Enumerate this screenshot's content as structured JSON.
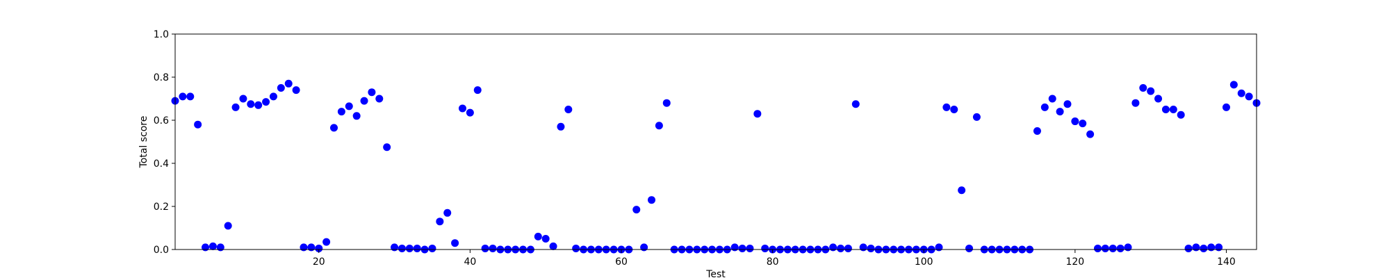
{
  "chart_data": {
    "type": "scatter",
    "title": "",
    "xlabel": "Test",
    "ylabel": "Total score",
    "xlim": [
      1,
      144
    ],
    "ylim": [
      0,
      1.0
    ],
    "xticks": [
      20,
      40,
      60,
      80,
      100,
      120,
      140
    ],
    "xtick_labels": [
      "20",
      "40",
      "60",
      "80",
      "100",
      "120",
      "140"
    ],
    "yticks": [
      0,
      0.2,
      0.4,
      0.6,
      0.8,
      1.0
    ],
    "ytick_labels": [
      "0.0",
      "0.2",
      "0.4",
      "0.6",
      "0.8",
      "1.0"
    ],
    "grid": false,
    "marker_color": "#0000ff",
    "series": [
      {
        "x": [
          1,
          2,
          3,
          4,
          5,
          6,
          7,
          8,
          9,
          10,
          11,
          12,
          13,
          14,
          15,
          16,
          17,
          18,
          19,
          20,
          21,
          22,
          23,
          24,
          25,
          26,
          27,
          28,
          29,
          30,
          31,
          32,
          33,
          34,
          35,
          36,
          37,
          38,
          39,
          40,
          41,
          42,
          43,
          44,
          45,
          46,
          47,
          48,
          49,
          50,
          51,
          52,
          53,
          54,
          55,
          56,
          57,
          58,
          59,
          60,
          61,
          62,
          63,
          64,
          65,
          66,
          67,
          68,
          69,
          70,
          71,
          72,
          73,
          74,
          75,
          76,
          77,
          78,
          79,
          80,
          81,
          82,
          83,
          84,
          85,
          86,
          87,
          88,
          89,
          90,
          91,
          92,
          93,
          94,
          95,
          96,
          97,
          98,
          99,
          100,
          101,
          102,
          103,
          104,
          105,
          106,
          107,
          108,
          109,
          110,
          111,
          112,
          113,
          114,
          115,
          116,
          117,
          118,
          119,
          120,
          121,
          122,
          123,
          124,
          125,
          126,
          127,
          128,
          129,
          130,
          131,
          132,
          133,
          134,
          135,
          136,
          137,
          138,
          139,
          140,
          141,
          142,
          143,
          144
        ],
        "y": [
          0.69,
          0.71,
          0.71,
          0.58,
          0.01,
          0.015,
          0.01,
          0.11,
          0.66,
          0.7,
          0.675,
          0.67,
          0.685,
          0.71,
          0.75,
          0.77,
          0.74,
          0.01,
          0.01,
          0.005,
          0.035,
          0.565,
          0.64,
          0.665,
          0.62,
          0.69,
          0.73,
          0.7,
          0.475,
          0.01,
          0.005,
          0.005,
          0.005,
          0.0,
          0.005,
          0.13,
          0.17,
          0.03,
          0.655,
          0.635,
          0.74,
          0.005,
          0.005,
          0.0,
          0.0,
          0.0,
          0.0,
          0.0,
          0.06,
          0.05,
          0.015,
          0.57,
          0.65,
          0.005,
          0.0,
          0.0,
          0.0,
          0.0,
          0.0,
          0.0,
          0.0,
          0.185,
          0.01,
          0.23,
          0.575,
          0.68,
          0.0,
          0.0,
          0.0,
          0.0,
          0.0,
          0.0,
          0.0,
          0.0,
          0.01,
          0.005,
          0.005,
          0.63,
          0.005,
          0.0,
          0.0,
          0.0,
          0.0,
          0.0,
          0.0,
          0.0,
          0.0,
          0.01,
          0.005,
          0.005,
          0.675,
          0.01,
          0.005,
          0.0,
          0.0,
          0.0,
          0.0,
          0.0,
          0.0,
          0.0,
          0.0,
          0.01,
          0.66,
          0.65,
          0.275,
          0.005,
          0.615,
          0.0,
          0.0,
          0.0,
          0.0,
          0.0,
          0.0,
          0.0,
          0.55,
          0.66,
          0.7,
          0.64,
          0.675,
          0.595,
          0.585,
          0.535,
          0.005,
          0.005,
          0.005,
          0.005,
          0.01,
          0.68,
          0.75,
          0.735,
          0.7,
          0.65,
          0.65,
          0.625,
          0.005,
          0.01,
          0.005,
          0.01,
          0.01,
          0.66,
          0.765,
          0.725,
          0.71,
          0.68
        ]
      }
    ]
  }
}
